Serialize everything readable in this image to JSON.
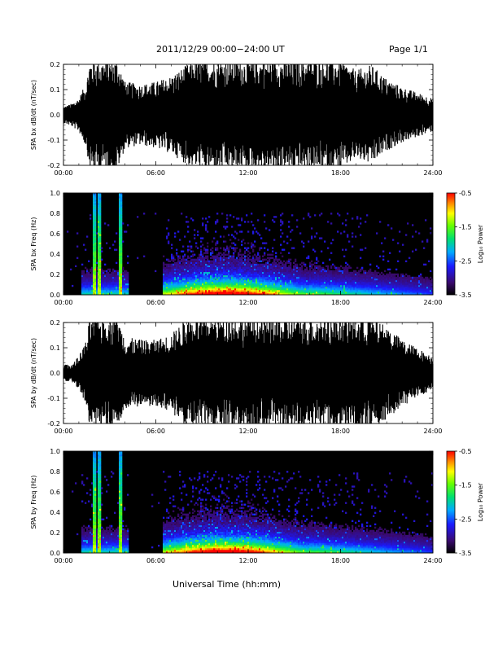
{
  "header": {
    "title": "2011/12/29  00:00−24:00 UT",
    "page": "Page 1/1"
  },
  "footer": {
    "xlabel": "Universal Time (hh:mm)"
  },
  "chart_data": [
    {
      "type": "line",
      "ylabel": "SPA bx dB/dt (nT/sec)",
      "ylim": [
        -0.2,
        0.2
      ],
      "yticks": [
        "-0.2",
        "-0.1",
        "0.0",
        "0.1",
        "0.2"
      ],
      "xticks": [
        "00:00",
        "06:00",
        "12:00",
        "18:00",
        "24:00"
      ],
      "envelope": {
        "hours": [
          0,
          0.5,
          1.0,
          1.5,
          1.7,
          2.0,
          2.5,
          3.0,
          3.5,
          4.0,
          5.0,
          6.0,
          7.0,
          8.0,
          9.0,
          10.0,
          11.0,
          12.0,
          13.0,
          14.0,
          15.0,
          16.0,
          17.0,
          18.0,
          19.0,
          20.0,
          21.0,
          22.0,
          23.0,
          24.0
        ],
        "amplitude": [
          0.03,
          0.04,
          0.06,
          0.12,
          0.2,
          0.2,
          0.2,
          0.2,
          0.2,
          0.12,
          0.11,
          0.12,
          0.14,
          0.18,
          0.2,
          0.2,
          0.2,
          0.2,
          0.2,
          0.2,
          0.2,
          0.2,
          0.2,
          0.2,
          0.16,
          0.18,
          0.13,
          0.1,
          0.08,
          0.06
        ]
      }
    },
    {
      "type": "heatmap",
      "ylabel": "SPA bx Freq (Hz)",
      "ylim": [
        0.0,
        1.0
      ],
      "yticks": [
        "0.0",
        "0.2",
        "0.4",
        "0.6",
        "0.8",
        "1.0"
      ],
      "xticks": [
        "00:00",
        "06:00",
        "12:00",
        "18:00",
        "24:00"
      ],
      "colorbar": {
        "label": "Log₁₀ Power",
        "ticks": [
          "-0.5",
          "-1.5",
          "-2.5",
          "-3.5"
        ],
        "range": [
          -3.5,
          -0.5
        ]
      },
      "bursts_hours": [
        2.0,
        2.3,
        3.7
      ],
      "activity_peak_hours": [
        8.5,
        12.5
      ]
    },
    {
      "type": "line",
      "ylabel": "SPA by dB/dt (nT/sec)",
      "ylim": [
        -0.2,
        0.2
      ],
      "yticks": [
        "-0.2",
        "-0.1",
        "0.0",
        "0.1",
        "0.2"
      ],
      "xticks": [
        "00:00",
        "06:00",
        "12:00",
        "18:00",
        "24:00"
      ],
      "envelope": {
        "hours": [
          0,
          0.5,
          1.0,
          1.5,
          1.7,
          2.0,
          2.5,
          3.0,
          3.5,
          4.0,
          5.0,
          6.0,
          7.0,
          8.0,
          9.0,
          10.0,
          11.0,
          12.0,
          13.0,
          14.0,
          15.0,
          16.0,
          17.0,
          18.0,
          19.0,
          20.0,
          21.0,
          22.0,
          23.0,
          24.0
        ],
        "amplitude": [
          0.03,
          0.03,
          0.06,
          0.12,
          0.2,
          0.2,
          0.2,
          0.2,
          0.2,
          0.13,
          0.12,
          0.12,
          0.14,
          0.2,
          0.2,
          0.2,
          0.2,
          0.2,
          0.2,
          0.2,
          0.2,
          0.2,
          0.2,
          0.2,
          0.2,
          0.2,
          0.17,
          0.12,
          0.09,
          0.06
        ]
      }
    },
    {
      "type": "heatmap",
      "ylabel": "SPA by Freq (Hz)",
      "ylim": [
        0.0,
        1.0
      ],
      "yticks": [
        "0.0",
        "0.2",
        "0.4",
        "0.6",
        "0.8",
        "1.0"
      ],
      "xticks": [
        "00:00",
        "06:00",
        "12:00",
        "18:00",
        "24:00"
      ],
      "colorbar": {
        "label": "Log₁₀ Power",
        "ticks": [
          "-0.5",
          "-1.5",
          "-2.5",
          "-3.5"
        ],
        "range": [
          -3.5,
          -0.5
        ]
      },
      "bursts_hours": [
        2.0,
        2.3,
        3.7
      ],
      "activity_peak_hours": [
        8.5,
        12.5
      ]
    }
  ]
}
